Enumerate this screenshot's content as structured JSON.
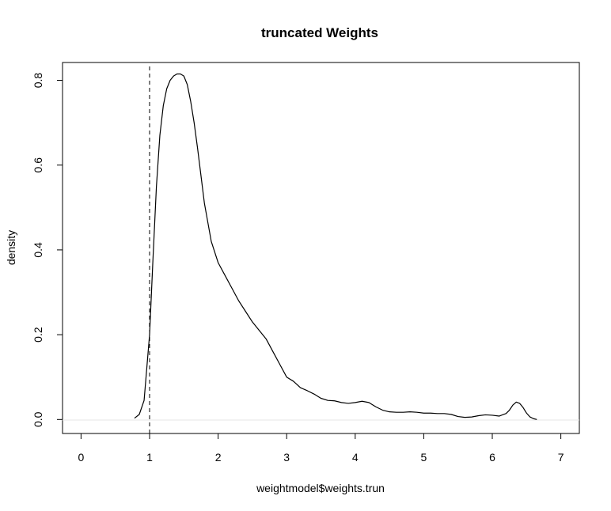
{
  "chart_data": {
    "type": "line",
    "title": "truncated Weights",
    "xlabel": "weightmodel$weights.trun",
    "ylabel": "density",
    "xlim": [
      -0.27,
      7.27
    ],
    "ylim": [
      -0.033,
      0.842
    ],
    "x_ticks": [
      "0",
      "1",
      "2",
      "3",
      "4",
      "5",
      "6",
      "7"
    ],
    "y_ticks": [
      "0.0",
      "0.2",
      "0.4",
      "0.6",
      "0.8"
    ],
    "reference_line": {
      "x": 1,
      "style": "dashed"
    },
    "baseline": {
      "y": 0,
      "color": "#e6e6e6"
    },
    "grid": false,
    "series": [
      {
        "line_color": "#000000",
        "x": [
          0.78,
          0.85,
          0.92,
          1.0,
          1.05,
          1.1,
          1.15,
          1.2,
          1.25,
          1.3,
          1.35,
          1.4,
          1.45,
          1.5,
          1.55,
          1.6,
          1.65,
          1.7,
          1.8,
          1.9,
          2.0,
          2.1,
          2.2,
          2.3,
          2.4,
          2.5,
          2.6,
          2.7,
          2.8,
          2.9,
          3.0,
          3.1,
          3.2,
          3.3,
          3.4,
          3.5,
          3.6,
          3.7,
          3.8,
          3.9,
          4.0,
          4.1,
          4.2,
          4.3,
          4.4,
          4.5,
          4.6,
          4.7,
          4.8,
          4.9,
          5.0,
          5.1,
          5.2,
          5.3,
          5.4,
          5.5,
          5.6,
          5.7,
          5.8,
          5.9,
          6.0,
          6.1,
          6.2,
          6.25,
          6.3,
          6.35,
          6.4,
          6.45,
          6.5,
          6.55,
          6.6,
          6.65
        ],
        "y": [
          0.003,
          0.012,
          0.045,
          0.2,
          0.38,
          0.55,
          0.67,
          0.74,
          0.78,
          0.8,
          0.81,
          0.815,
          0.815,
          0.81,
          0.79,
          0.75,
          0.7,
          0.64,
          0.51,
          0.42,
          0.37,
          0.34,
          0.31,
          0.28,
          0.255,
          0.23,
          0.21,
          0.19,
          0.16,
          0.13,
          0.1,
          0.09,
          0.075,
          0.068,
          0.06,
          0.05,
          0.045,
          0.044,
          0.04,
          0.038,
          0.04,
          0.043,
          0.04,
          0.03,
          0.022,
          0.018,
          0.017,
          0.017,
          0.018,
          0.017,
          0.015,
          0.015,
          0.014,
          0.014,
          0.012,
          0.007,
          0.005,
          0.006,
          0.009,
          0.011,
          0.01,
          0.008,
          0.014,
          0.022,
          0.034,
          0.041,
          0.038,
          0.028,
          0.015,
          0.006,
          0.002,
          0.0
        ]
      }
    ]
  }
}
